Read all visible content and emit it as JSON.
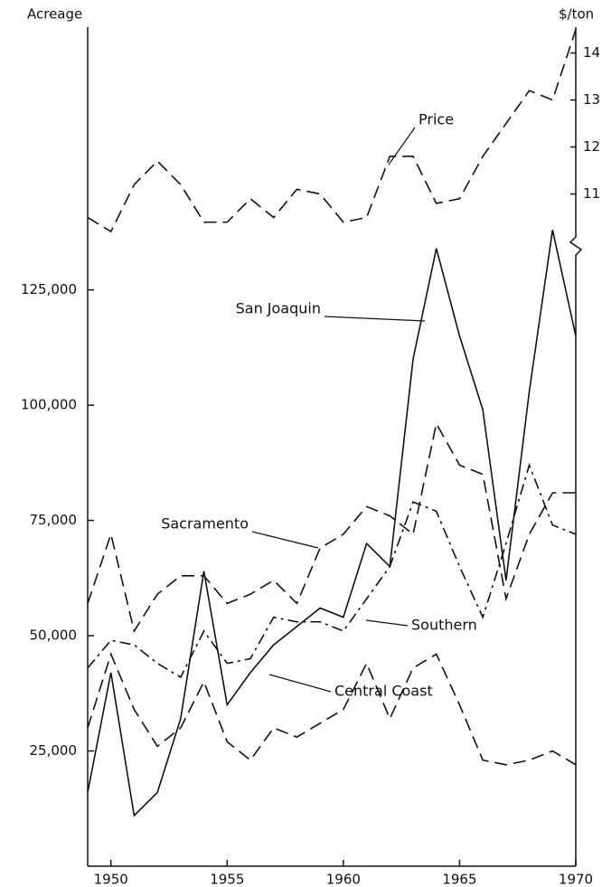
{
  "chart_data": {
    "type": "line",
    "ylabel": "Acreage",
    "y2label": "$/ton",
    "x": [
      1949,
      1950,
      1951,
      1952,
      1953,
      1954,
      1955,
      1956,
      1957,
      1958,
      1959,
      1960,
      1961,
      1962,
      1963,
      1964,
      1965,
      1966,
      1967,
      1968,
      1969,
      1970
    ],
    "xlim": [
      1949,
      1970
    ],
    "xticks": [
      1950,
      1955,
      1960,
      1965,
      1970
    ],
    "ylim": [
      0,
      182000
    ],
    "yticks": [
      {
        "value": 25000,
        "label": "25,000"
      },
      {
        "value": 50000,
        "label": "50,000"
      },
      {
        "value": 75000,
        "label": "75,000"
      },
      {
        "value": 100000,
        "label": "100,000"
      },
      {
        "value": 125000,
        "label": "125,000"
      }
    ],
    "y2lim": [
      -3.3,
      14.55
    ],
    "y2ticks": [
      11,
      12,
      13,
      14
    ],
    "series": [
      {
        "name": "Price",
        "color": "#111",
        "style": "dashed",
        "axis": "y2",
        "values": [
          10.5,
          10.2,
          11.2,
          11.7,
          11.2,
          10.4,
          10.4,
          10.9,
          10.5,
          11.1,
          11.0,
          10.4,
          10.5,
          11.8,
          11.8,
          10.8,
          10.9,
          11.8,
          12.5,
          13.2,
          13.0,
          14.5
        ]
      },
      {
        "name": "San Joaquin",
        "color": "#111",
        "style": "solid",
        "values": [
          16000,
          42000,
          11000,
          16000,
          32000,
          64000,
          35000,
          42000,
          48000,
          52000,
          56000,
          54000,
          70000,
          65000,
          110000,
          134000,
          115000,
          99000,
          62000,
          103000,
          138000,
          115000
        ]
      },
      {
        "name": "Sacramento",
        "color": "#111",
        "style": "dashed",
        "values": [
          57000,
          72000,
          51000,
          59000,
          63000,
          63000,
          57000,
          59000,
          62000,
          57000,
          69000,
          72000,
          78000,
          76000,
          72000,
          96000,
          87000,
          85000,
          58000,
          72000,
          81000,
          81000
        ]
      },
      {
        "name": "Southern",
        "color": "#111",
        "style": "dashdot",
        "values": [
          43000,
          49000,
          48000,
          44000,
          41000,
          51000,
          44000,
          45000,
          54000,
          53000,
          53000,
          51000,
          58000,
          65000,
          79000,
          77000,
          65000,
          54000,
          70000,
          87000,
          74000,
          72000
        ]
      },
      {
        "name": "Central Coast",
        "color": "#111",
        "style": "dashed",
        "values": [
          30000,
          46000,
          34000,
          26000,
          30000,
          40000,
          27000,
          23000,
          30000,
          28000,
          31000,
          34000,
          44000,
          32000,
          43000,
          46000,
          35000,
          23000,
          22000,
          23000,
          25000,
          22000
        ]
      }
    ]
  }
}
